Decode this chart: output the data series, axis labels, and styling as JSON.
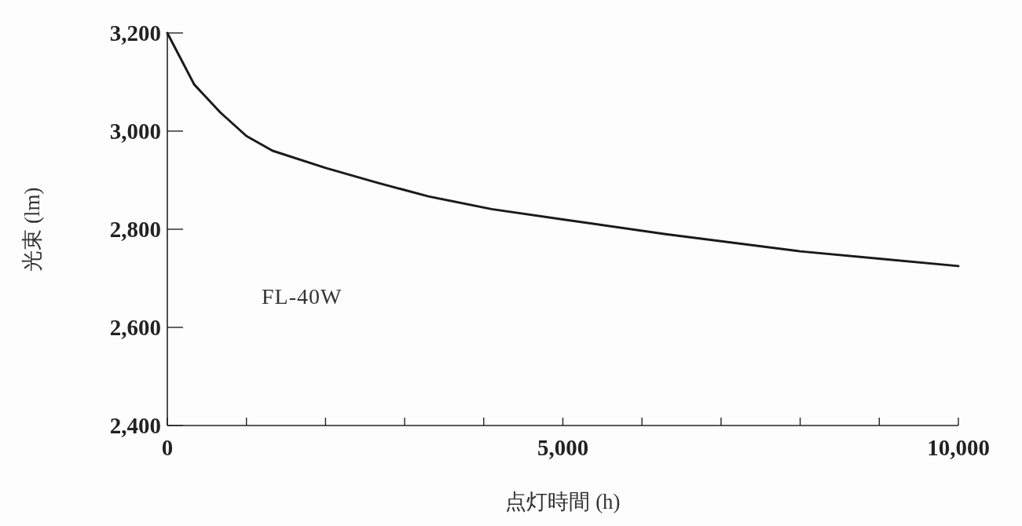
{
  "chart_data": {
    "type": "line",
    "xlabel": "点灯時間 (h)",
    "ylabel": "光束 (lm)",
    "annotations": [
      "FL-40W"
    ],
    "x": [
      0,
      340,
      670,
      1000,
      1330,
      2000,
      2650,
      3300,
      4100,
      5000,
      6300,
      8000,
      9000,
      10000
    ],
    "series": [
      {
        "color": "#1a1a1a",
        "values": [
          3200,
          3095,
          3038,
          2990,
          2960,
          2925,
          2895,
          2867,
          2841,
          2820,
          2790,
          2755,
          2740,
          2725
        ]
      }
    ],
    "xlim": [
      0,
      10000
    ],
    "ylim": [
      2400,
      3200
    ],
    "xticks": [
      0,
      {
        "value": 1000,
        "label": null
      },
      {
        "value": 2000,
        "label": null
      },
      {
        "value": 3000,
        "label": null
      },
      {
        "value": 4000,
        "label": null
      },
      {
        "value": 5000,
        "label": "5,000"
      },
      {
        "value": 6000,
        "label": null
      },
      {
        "value": 7000,
        "label": null
      },
      {
        "value": 8000,
        "label": null
      },
      {
        "value": 9000,
        "label": null
      },
      {
        "value": 10000,
        "label": "10,000"
      }
    ],
    "yticks": [
      {
        "value": 2400,
        "label": "2,400"
      },
      {
        "value": 2600,
        "label": "2,600"
      },
      {
        "value": 2800,
        "label": "2,800"
      },
      {
        "value": 3000,
        "label": "3,000"
      },
      {
        "value": 3200,
        "label": "3,200"
      }
    ],
    "grid": false,
    "marker": "none",
    "line_style": "solid"
  }
}
